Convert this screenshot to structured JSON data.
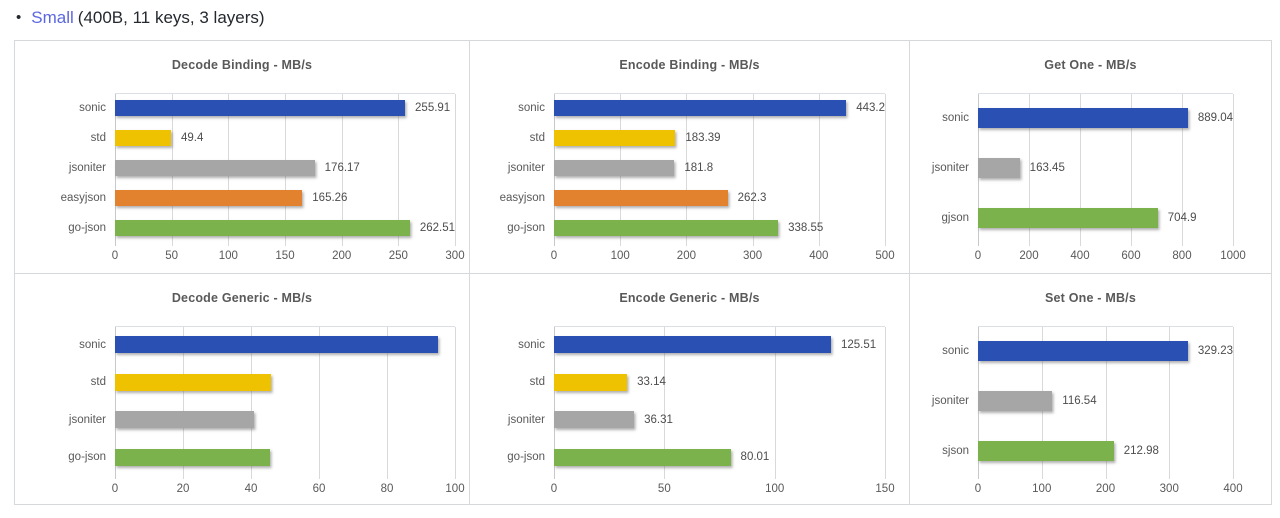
{
  "page": {
    "bullet": "•",
    "title_link": "Small",
    "title_rest": "(400B, 11 keys, 3 layers)"
  },
  "colors": {
    "link": "#5b67e0",
    "chart_text": "#595959",
    "gridline": "#d9d9d9",
    "cell_border": "#d6d9dc"
  },
  "palette": {
    "sonic": "#2b50b4",
    "std": "#eec200",
    "jsoniter": "#a6a6a6",
    "easyjson": "#e2812e",
    "go-json": "#7cb24c",
    "gjson": "#7cb24c",
    "sjson": "#7cb24c"
  },
  "chart_data": [
    {
      "type": "bar",
      "orientation": "horizontal",
      "title": "Decode Binding - MB/s",
      "categories": [
        "sonic",
        "std",
        "jsoniter",
        "easyjson",
        "go-json"
      ],
      "values": [
        255.91,
        49.4,
        176.17,
        165.26,
        262.51
      ],
      "xlim": [
        0,
        300
      ],
      "xticks": [
        0,
        50,
        100,
        150,
        200,
        250,
        300
      ],
      "grid": true,
      "labels_visible": true
    },
    {
      "type": "bar",
      "orientation": "horizontal",
      "title": "Encode Binding - MB/s",
      "categories": [
        "sonic",
        "std",
        "jsoniter",
        "easyjson",
        "go-json"
      ],
      "values": [
        443.2,
        183.39,
        181.8,
        262.3,
        338.55
      ],
      "xlim": [
        0,
        500
      ],
      "xticks": [
        0,
        100,
        200,
        300,
        400,
        500
      ],
      "grid": true,
      "labels_visible": true
    },
    {
      "type": "bar",
      "orientation": "horizontal",
      "title": "Get One - MB/s",
      "categories": [
        "sonic",
        "jsoniter",
        "gjson"
      ],
      "values": [
        889.04,
        163.45,
        704.9
      ],
      "xlim": [
        0,
        1000
      ],
      "xticks": [
        0,
        200,
        400,
        600,
        800,
        1000
      ],
      "grid": true,
      "labels_visible": true
    },
    {
      "type": "bar",
      "orientation": "horizontal",
      "title": "Decode Generic - MB/s",
      "categories": [
        "sonic",
        "std",
        "jsoniter",
        "go-json"
      ],
      "values": [
        95,
        46,
        41,
        45.5
      ],
      "values_estimated": true,
      "xlim": [
        0,
        100
      ],
      "xticks": [
        0,
        20,
        40,
        60,
        80,
        100
      ],
      "grid": true,
      "labels_visible": false
    },
    {
      "type": "bar",
      "orientation": "horizontal",
      "title": "Encode Generic - MB/s",
      "categories": [
        "sonic",
        "std",
        "jsoniter",
        "go-json"
      ],
      "values": [
        125.51,
        33.14,
        36.31,
        80.01
      ],
      "xlim": [
        0,
        150
      ],
      "xticks": [
        0,
        50,
        100,
        150
      ],
      "grid": true,
      "labels_visible": true
    },
    {
      "type": "bar",
      "orientation": "horizontal",
      "title": "Set One - MB/s",
      "categories": [
        "sonic",
        "jsoniter",
        "sjson"
      ],
      "values": [
        329.23,
        116.54,
        212.98
      ],
      "xlim": [
        0,
        400
      ],
      "xticks": [
        0,
        100,
        200,
        300,
        400
      ],
      "grid": true,
      "labels_visible": true
    }
  ]
}
